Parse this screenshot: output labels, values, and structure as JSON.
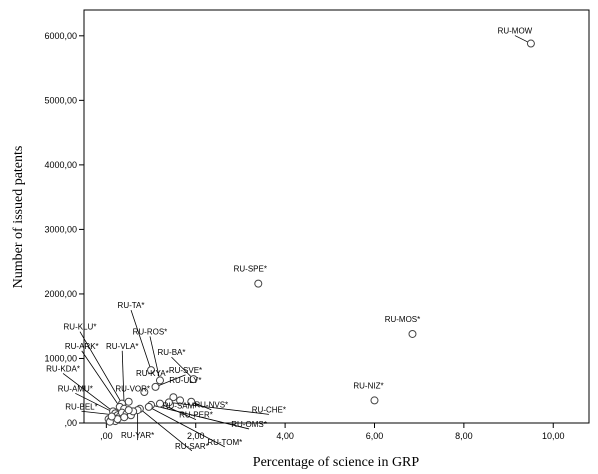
{
  "chart_data": {
    "type": "scatter",
    "xlabel": "Percentage of science in GRP",
    "ylabel": "Number of issued patents",
    "xlim": [
      -0.5,
      10.8
    ],
    "ylim": [
      0,
      6400
    ],
    "grid": false,
    "x_ticks": [
      0,
      2,
      4,
      6,
      8,
      10
    ],
    "x_tick_labels": [
      ",00",
      "2,00",
      "4,00",
      "6,00",
      "8,00",
      "10,00"
    ],
    "y_ticks": [
      0,
      1000,
      2000,
      3000,
      4000,
      5000,
      6000
    ],
    "y_tick_labels": [
      ",00",
      "1000,00",
      "2000,00",
      "3000,00",
      "4000,00",
      "5000,00",
      "6000,00"
    ],
    "points": [
      {
        "label": "RU-MOW",
        "x": 9.5,
        "y": 5880
      },
      {
        "label": "RU-SPE*",
        "x": 3.4,
        "y": 2160
      },
      {
        "label": "RU-MOS*",
        "x": 6.85,
        "y": 1380
      },
      {
        "label": "RU-NIZ*",
        "x": 6.0,
        "y": 350
      },
      {
        "label": "RU-TA*",
        "x": 1.0,
        "y": 820
      },
      {
        "label": "RU-ROS*",
        "x": 1.2,
        "y": 660
      },
      {
        "label": "RU-BA*",
        "x": 1.95,
        "y": 680
      },
      {
        "label": "RU-SVE*",
        "x": 1.1,
        "y": 560
      },
      {
        "label": "RU-KYA*",
        "x": 0.85,
        "y": 480
      },
      {
        "label": "RU-ULY*",
        "x": 1.5,
        "y": 400
      },
      {
        "label": "RU-VOR*",
        "x": 0.5,
        "y": 330
      },
      {
        "label": "RU-SAM*",
        "x": 1.65,
        "y": 350
      },
      {
        "label": "RU-NVS*",
        "x": 1.9,
        "y": 330
      },
      {
        "label": "RU-CHE*",
        "x": 1.4,
        "y": 320
      },
      {
        "label": "RU-PER*",
        "x": 1.2,
        "y": 300
      },
      {
        "label": "RU-OMS*",
        "x": 1.0,
        "y": 280
      },
      {
        "label": "RU-TOM*",
        "x": 0.95,
        "y": 250
      },
      {
        "label": "RU-SAR*",
        "x": 0.75,
        "y": 220
      },
      {
        "label": "RU-YAR*",
        "x": 0.7,
        "y": 200
      },
      {
        "label": "RU-KLU*",
        "x": 0.35,
        "y": 300
      },
      {
        "label": "RU-ARK*",
        "x": 0.3,
        "y": 250
      },
      {
        "label": "RU-VLA*",
        "x": 0.4,
        "y": 220
      },
      {
        "label": "RU-KDA*",
        "x": 0.15,
        "y": 180
      },
      {
        "label": "RU-AMU*",
        "x": 0.2,
        "y": 150
      },
      {
        "label": "RU-BEL*",
        "x": 0.25,
        "y": 120
      },
      {
        "label": "",
        "x": 0.05,
        "y": 60
      },
      {
        "label": "",
        "x": 0.1,
        "y": 40
      },
      {
        "label": "",
        "x": 0.15,
        "y": 80
      },
      {
        "label": "",
        "x": 0.2,
        "y": 30
      },
      {
        "label": "",
        "x": 0.3,
        "y": 100
      },
      {
        "label": "",
        "x": 0.35,
        "y": 160
      },
      {
        "label": "",
        "x": 0.45,
        "y": 140
      },
      {
        "label": "",
        "x": 0.55,
        "y": 120
      },
      {
        "label": "",
        "x": 0.6,
        "y": 180
      },
      {
        "label": "",
        "x": 0.25,
        "y": 60
      },
      {
        "label": "",
        "x": 0.08,
        "y": 20
      },
      {
        "label": "",
        "x": 0.12,
        "y": 100
      },
      {
        "label": "",
        "x": 0.4,
        "y": 90
      },
      {
        "label": "",
        "x": 0.5,
        "y": 200
      }
    ]
  }
}
